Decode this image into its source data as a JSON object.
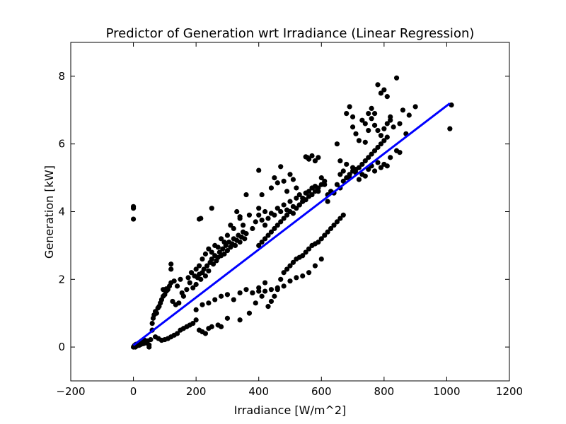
{
  "chart_data": {
    "type": "scatter",
    "title": "Predictor of Generation wrt Irradiance (Linear Regression)",
    "xlabel": "Irradiance [W/m^2]",
    "ylabel": "Generation [kW]",
    "xlim": [
      -200,
      1200
    ],
    "ylim": [
      -1,
      9
    ],
    "xticks": [
      -200,
      0,
      200,
      400,
      600,
      800,
      1000,
      1200
    ],
    "yticks": [
      0,
      2,
      4,
      6,
      8
    ],
    "grid": false,
    "colors": {
      "points": "#000000",
      "regression_line": "#0000ff"
    },
    "regression_line": {
      "x": [
        0,
        1010
      ],
      "y": [
        0.05,
        7.2
      ]
    },
    "series": [
      {
        "values": [
          [
            0,
            4.15
          ],
          [
            0,
            4.1
          ],
          [
            0,
            3.78
          ],
          [
            0,
            0.0
          ],
          [
            2,
            0.02
          ],
          [
            4,
            0.05
          ],
          [
            6,
            0.0
          ],
          [
            8,
            0.08
          ],
          [
            10,
            0.03
          ],
          [
            12,
            0.06
          ],
          [
            15,
            0.1
          ],
          [
            18,
            0.05
          ],
          [
            20,
            0.12
          ],
          [
            24,
            0.08
          ],
          [
            28,
            0.15
          ],
          [
            32,
            0.1
          ],
          [
            36,
            0.2
          ],
          [
            40,
            0.12
          ],
          [
            45,
            0.18
          ],
          [
            50,
            0.06
          ],
          [
            50,
            0.0
          ],
          [
            55,
            0.22
          ],
          [
            60,
            0.7
          ],
          [
            63,
            0.85
          ],
          [
            66,
            0.95
          ],
          [
            70,
            1.05
          ],
          [
            74,
            1.0
          ],
          [
            78,
            1.15
          ],
          [
            82,
            1.2
          ],
          [
            86,
            1.3
          ],
          [
            90,
            1.4
          ],
          [
            95,
            1.5
          ],
          [
            100,
            1.55
          ],
          [
            105,
            1.65
          ],
          [
            110,
            1.7
          ],
          [
            115,
            1.8
          ],
          [
            120,
            1.9
          ],
          [
            95,
            1.7
          ],
          [
            105,
            1.72
          ],
          [
            130,
            1.95
          ],
          [
            140,
            1.8
          ],
          [
            150,
            2.0
          ],
          [
            155,
            1.6
          ],
          [
            160,
            1.5
          ],
          [
            170,
            1.7
          ],
          [
            180,
            1.9
          ],
          [
            190,
            1.75
          ],
          [
            200,
            1.85
          ],
          [
            205,
            2.05
          ],
          [
            210,
            2.15
          ],
          [
            215,
            2.0
          ],
          [
            220,
            2.2
          ],
          [
            225,
            2.3
          ],
          [
            230,
            2.1
          ],
          [
            235,
            2.4
          ],
          [
            240,
            2.25
          ],
          [
            245,
            2.5
          ],
          [
            250,
            2.6
          ],
          [
            255,
            2.45
          ],
          [
            260,
            2.7
          ],
          [
            265,
            2.55
          ],
          [
            270,
            2.65
          ],
          [
            275,
            2.8
          ],
          [
            280,
            2.7
          ],
          [
            285,
            2.9
          ],
          [
            290,
            2.75
          ],
          [
            295,
            3.0
          ],
          [
            300,
            2.85
          ],
          [
            305,
            3.1
          ],
          [
            310,
            2.95
          ],
          [
            315,
            3.05
          ],
          [
            320,
            3.2
          ],
          [
            325,
            3.0
          ],
          [
            330,
            3.15
          ],
          [
            335,
            3.3
          ],
          [
            340,
            3.1
          ],
          [
            345,
            3.25
          ],
          [
            350,
            3.4
          ],
          [
            355,
            3.2
          ],
          [
            360,
            3.35
          ],
          [
            120,
            2.45
          ],
          [
            120,
            2.3
          ],
          [
            125,
            1.35
          ],
          [
            135,
            1.25
          ],
          [
            145,
            1.3
          ],
          [
            175,
            2.05
          ],
          [
            185,
            2.2
          ],
          [
            195,
            2.1
          ],
          [
            200,
            2.3
          ],
          [
            210,
            2.4
          ],
          [
            220,
            2.6
          ],
          [
            230,
            2.75
          ],
          [
            240,
            2.9
          ],
          [
            250,
            2.8
          ],
          [
            260,
            3.0
          ],
          [
            270,
            2.95
          ],
          [
            280,
            3.2
          ],
          [
            290,
            3.1
          ],
          [
            300,
            3.3
          ],
          [
            310,
            3.6
          ],
          [
            320,
            3.5
          ],
          [
            340,
            3.8
          ],
          [
            350,
            3.6
          ],
          [
            210,
            3.78
          ],
          [
            215,
            3.8
          ],
          [
            250,
            4.1
          ],
          [
            330,
            4.0
          ],
          [
            340,
            3.85
          ],
          [
            360,
            4.5
          ],
          [
            400,
            5.22
          ],
          [
            400,
            4.1
          ],
          [
            410,
            4.5
          ],
          [
            420,
            4.0
          ],
          [
            440,
            4.7
          ],
          [
            450,
            5.0
          ],
          [
            460,
            4.85
          ],
          [
            470,
            5.33
          ],
          [
            480,
            4.9
          ],
          [
            490,
            4.6
          ],
          [
            500,
            5.1
          ],
          [
            510,
            4.95
          ],
          [
            520,
            4.7
          ],
          [
            530,
            4.2
          ],
          [
            540,
            4.3
          ],
          [
            550,
            5.62
          ],
          [
            555,
            5.6
          ],
          [
            560,
            5.55
          ],
          [
            570,
            5.65
          ],
          [
            580,
            5.5
          ],
          [
            590,
            5.6
          ],
          [
            600,
            5.0
          ],
          [
            610,
            4.8
          ],
          [
            620,
            4.5
          ],
          [
            370,
            3.9
          ],
          [
            380,
            3.5
          ],
          [
            390,
            3.7
          ],
          [
            400,
            3.9
          ],
          [
            410,
            3.75
          ],
          [
            420,
            3.6
          ],
          [
            430,
            3.8
          ],
          [
            440,
            3.95
          ],
          [
            450,
            3.9
          ],
          [
            460,
            4.1
          ],
          [
            470,
            4.0
          ],
          [
            480,
            4.2
          ],
          [
            490,
            4.05
          ],
          [
            500,
            4.3
          ],
          [
            510,
            4.15
          ],
          [
            520,
            4.4
          ],
          [
            530,
            4.5
          ],
          [
            540,
            4.4
          ],
          [
            550,
            4.55
          ],
          [
            560,
            4.6
          ],
          [
            570,
            4.7
          ],
          [
            580,
            4.75
          ],
          [
            590,
            4.6
          ],
          [
            600,
            4.8
          ],
          [
            610,
            4.9
          ],
          [
            60,
            0.5
          ],
          [
            70,
            0.3
          ],
          [
            80,
            0.25
          ],
          [
            90,
            0.2
          ],
          [
            100,
            0.22
          ],
          [
            110,
            0.25
          ],
          [
            120,
            0.3
          ],
          [
            130,
            0.35
          ],
          [
            140,
            0.4
          ],
          [
            150,
            0.5
          ],
          [
            160,
            0.55
          ],
          [
            170,
            0.6
          ],
          [
            180,
            0.65
          ],
          [
            190,
            0.7
          ],
          [
            200,
            0.8
          ],
          [
            210,
            0.5
          ],
          [
            220,
            0.45
          ],
          [
            230,
            0.4
          ],
          [
            240,
            0.55
          ],
          [
            250,
            0.6
          ],
          [
            270,
            0.65
          ],
          [
            280,
            0.6
          ],
          [
            300,
            0.85
          ],
          [
            340,
            0.8
          ],
          [
            200,
            1.1
          ],
          [
            220,
            1.25
          ],
          [
            240,
            1.3
          ],
          [
            260,
            1.4
          ],
          [
            280,
            1.5
          ],
          [
            300,
            1.55
          ],
          [
            320,
            1.4
          ],
          [
            340,
            1.6
          ],
          [
            360,
            1.7
          ],
          [
            380,
            1.6
          ],
          [
            400,
            1.75
          ],
          [
            420,
            1.65
          ],
          [
            440,
            1.7
          ],
          [
            460,
            1.75
          ],
          [
            480,
            1.8
          ],
          [
            500,
            1.95
          ],
          [
            520,
            2.05
          ],
          [
            540,
            2.1
          ],
          [
            560,
            2.2
          ],
          [
            580,
            2.4
          ],
          [
            600,
            2.6
          ],
          [
            370,
            1.0
          ],
          [
            380,
            1.6
          ],
          [
            390,
            1.3
          ],
          [
            400,
            1.65
          ],
          [
            410,
            1.5
          ],
          [
            420,
            1.9
          ],
          [
            430,
            1.2
          ],
          [
            440,
            1.35
          ],
          [
            450,
            1.5
          ],
          [
            460,
            1.7
          ],
          [
            470,
            2.0
          ],
          [
            480,
            2.2
          ],
          [
            490,
            2.3
          ],
          [
            500,
            2.4
          ],
          [
            510,
            2.5
          ],
          [
            520,
            2.6
          ],
          [
            530,
            2.65
          ],
          [
            540,
            2.7
          ],
          [
            550,
            2.8
          ],
          [
            560,
            2.9
          ],
          [
            570,
            3.0
          ],
          [
            580,
            3.05
          ],
          [
            590,
            3.1
          ],
          [
            600,
            3.2
          ],
          [
            610,
            3.3
          ],
          [
            620,
            3.4
          ],
          [
            630,
            3.5
          ],
          [
            640,
            3.6
          ],
          [
            650,
            3.7
          ],
          [
            660,
            3.8
          ],
          [
            670,
            3.9
          ],
          [
            400,
            3.0
          ],
          [
            410,
            3.1
          ],
          [
            420,
            3.2
          ],
          [
            430,
            3.3
          ],
          [
            440,
            3.4
          ],
          [
            450,
            3.5
          ],
          [
            460,
            3.6
          ],
          [
            470,
            3.7
          ],
          [
            480,
            3.8
          ],
          [
            490,
            3.9
          ],
          [
            500,
            4.0
          ],
          [
            510,
            3.95
          ],
          [
            520,
            4.1
          ],
          [
            530,
            4.2
          ],
          [
            540,
            4.3
          ],
          [
            550,
            4.35
          ],
          [
            560,
            4.45
          ],
          [
            570,
            4.5
          ],
          [
            580,
            4.6
          ],
          [
            590,
            4.7
          ],
          [
            620,
            4.3
          ],
          [
            630,
            4.6
          ],
          [
            640,
            4.55
          ],
          [
            650,
            4.8
          ],
          [
            660,
            4.7
          ],
          [
            670,
            4.9
          ],
          [
            680,
            5.0
          ],
          [
            690,
            5.1
          ],
          [
            700,
            5.2
          ],
          [
            710,
            5.25
          ],
          [
            720,
            5.3
          ],
          [
            730,
            5.4
          ],
          [
            740,
            5.5
          ],
          [
            750,
            5.6
          ],
          [
            760,
            5.7
          ],
          [
            770,
            5.8
          ],
          [
            780,
            5.9
          ],
          [
            790,
            6.0
          ],
          [
            800,
            6.1
          ],
          [
            810,
            6.2
          ],
          [
            650,
            6.0
          ],
          [
            660,
            5.1
          ],
          [
            680,
            6.9
          ],
          [
            690,
            7.1
          ],
          [
            700,
            6.8
          ],
          [
            720,
            6.1
          ],
          [
            740,
            6.05
          ],
          [
            750,
            6.4
          ],
          [
            760,
            7.05
          ],
          [
            770,
            6.9
          ],
          [
            780,
            7.75
          ],
          [
            790,
            7.5
          ],
          [
            800,
            7.6
          ],
          [
            810,
            7.4
          ],
          [
            820,
            6.7
          ],
          [
            830,
            6.5
          ],
          [
            840,
            7.95
          ],
          [
            850,
            6.6
          ],
          [
            860,
            7.0
          ],
          [
            870,
            6.3
          ],
          [
            880,
            6.85
          ],
          [
            900,
            7.1
          ],
          [
            1010,
            6.45
          ],
          [
            1015,
            7.15
          ],
          [
            660,
            5.5
          ],
          [
            670,
            5.2
          ],
          [
            680,
            5.4
          ],
          [
            690,
            5.0
          ],
          [
            700,
            5.3
          ],
          [
            710,
            5.15
          ],
          [
            720,
            4.95
          ],
          [
            730,
            5.1
          ],
          [
            740,
            5.05
          ],
          [
            750,
            5.25
          ],
          [
            760,
            5.35
          ],
          [
            770,
            5.2
          ],
          [
            780,
            5.45
          ],
          [
            790,
            5.3
          ],
          [
            800,
            5.4
          ],
          [
            810,
            5.35
          ],
          [
            820,
            5.6
          ],
          [
            840,
            5.8
          ],
          [
            850,
            5.75
          ],
          [
            700,
            6.5
          ],
          [
            710,
            6.3
          ],
          [
            730,
            6.7
          ],
          [
            740,
            6.6
          ],
          [
            750,
            6.9
          ],
          [
            760,
            6.75
          ],
          [
            770,
            6.55
          ],
          [
            780,
            6.4
          ],
          [
            790,
            6.25
          ],
          [
            800,
            6.45
          ],
          [
            810,
            6.6
          ],
          [
            820,
            6.8
          ]
        ]
      }
    ]
  }
}
